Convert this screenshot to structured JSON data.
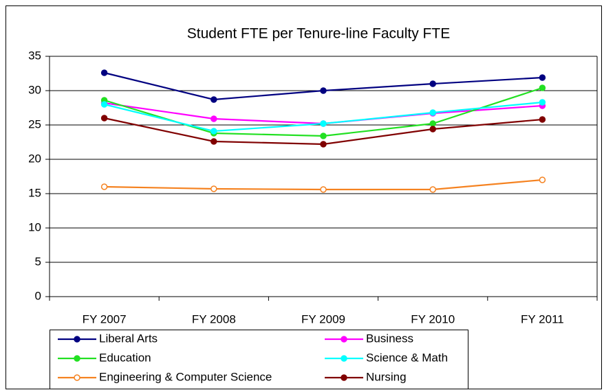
{
  "chart_data": {
    "type": "line",
    "title": "Student FTE per Tenure-line Faculty FTE",
    "categories": [
      "FY 2007",
      "FY 2008",
      "FY 2009",
      "FY 2010",
      "FY 2011"
    ],
    "series": [
      {
        "name": "Liberal Arts",
        "color": "#000080",
        "marker": "filled",
        "values": [
          32.6,
          28.7,
          30.0,
          31.0,
          31.9
        ]
      },
      {
        "name": "Business",
        "color": "#ff00ff",
        "marker": "filled",
        "values": [
          28.2,
          25.9,
          25.2,
          26.7,
          27.8
        ]
      },
      {
        "name": "Education",
        "color": "#22e022",
        "marker": "filled",
        "values": [
          28.6,
          23.8,
          23.4,
          25.2,
          30.4
        ]
      },
      {
        "name": "Science & Math",
        "color": "#00ffff",
        "marker": "filled",
        "values": [
          28.0,
          24.1,
          25.2,
          26.8,
          28.3
        ]
      },
      {
        "name": "Engineering & Computer Science",
        "color": "#f58220",
        "marker": "open",
        "values": [
          16.0,
          15.7,
          15.6,
          15.6,
          17.0
        ]
      },
      {
        "name": "Nursing",
        "color": "#800000",
        "marker": "filled",
        "values": [
          26.0,
          22.6,
          22.2,
          24.4,
          25.8
        ]
      }
    ],
    "ylim": [
      0,
      35
    ],
    "yticks": [
      0,
      5,
      10,
      15,
      20,
      25,
      30,
      35
    ],
    "grid": true,
    "legend": "bottom"
  }
}
